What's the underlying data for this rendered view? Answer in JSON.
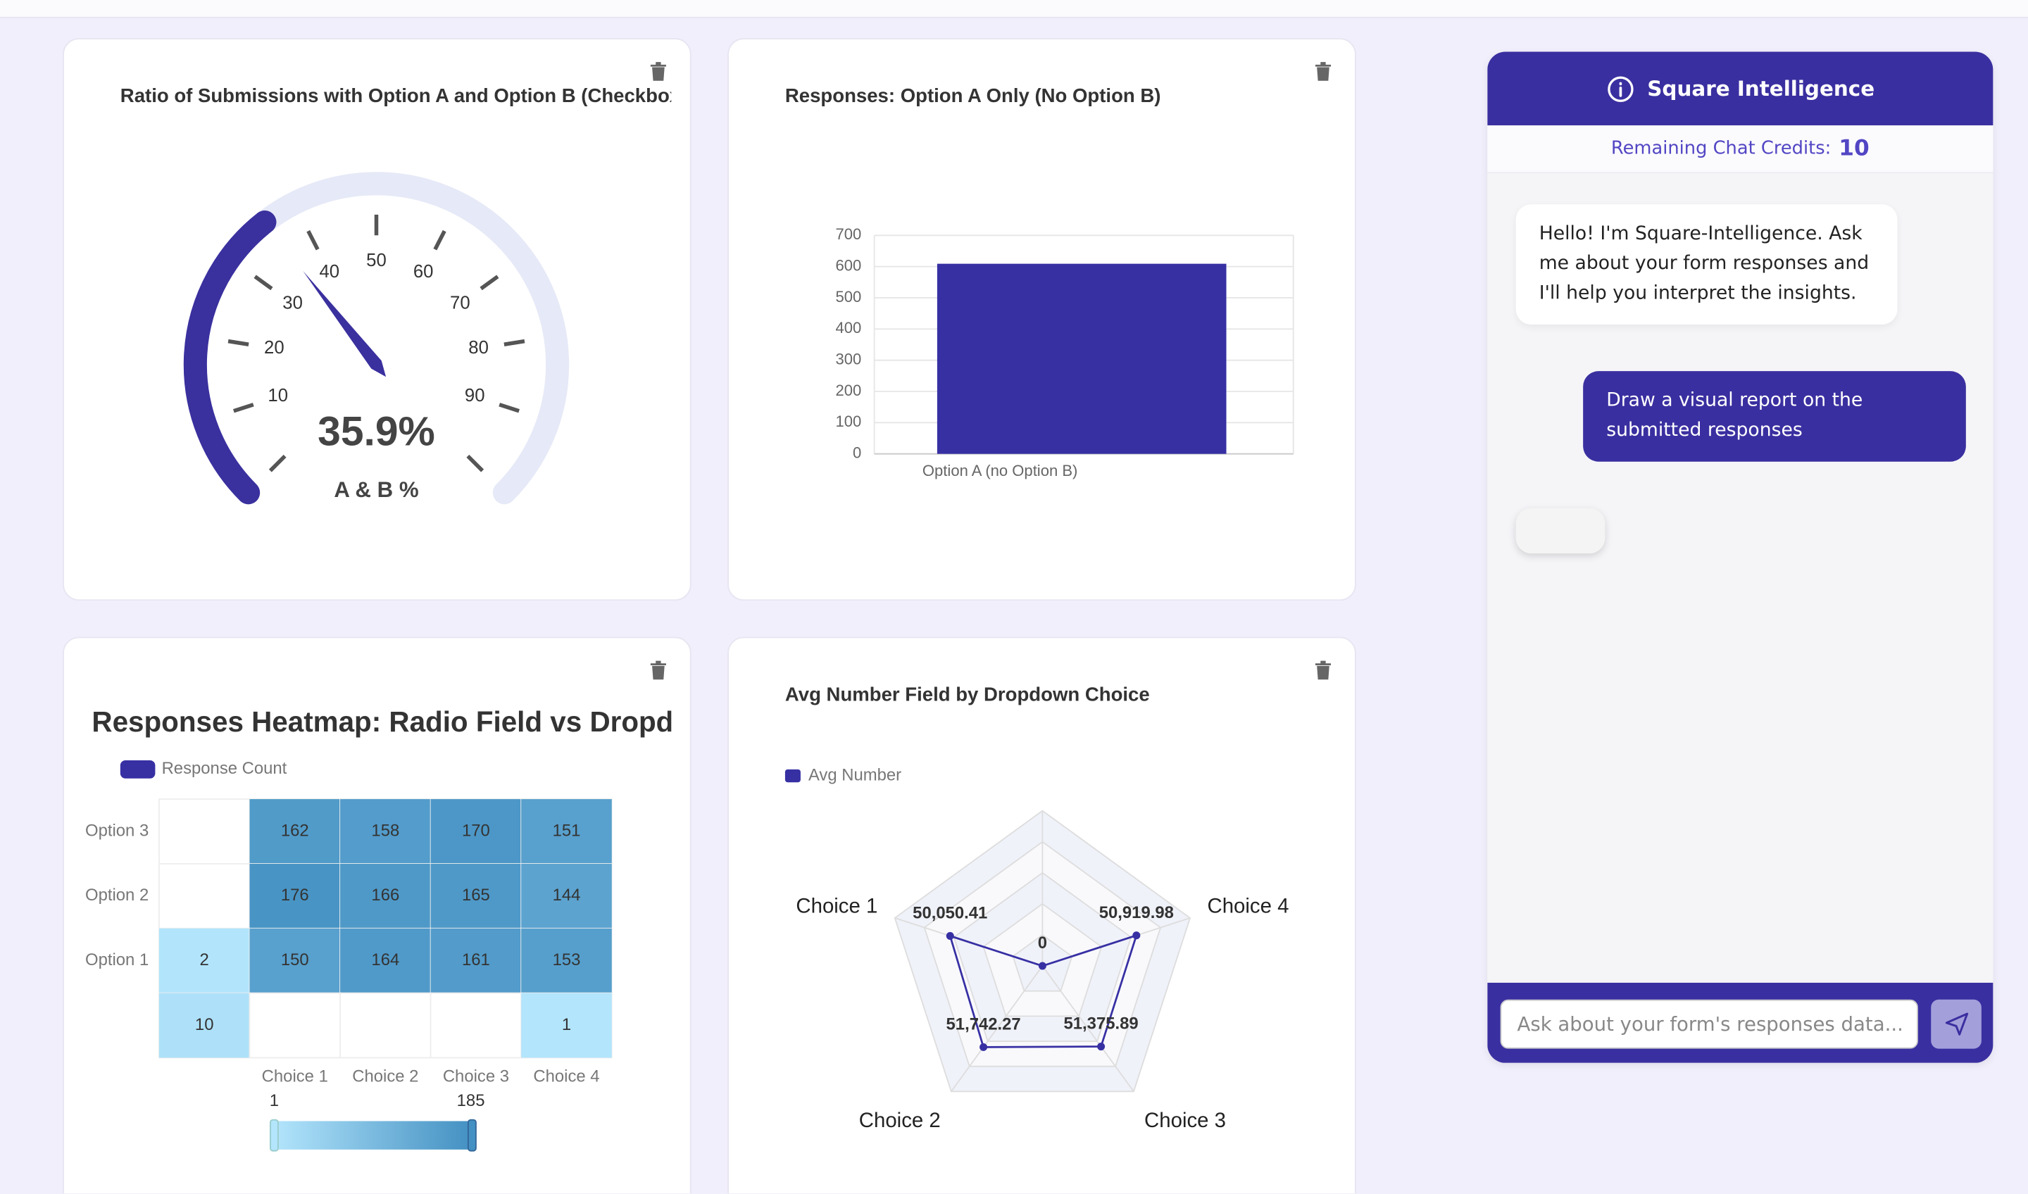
{
  "gauge_card": {
    "title": "Ratio of Submissions with Option A and Option B (Checkbox)",
    "chart": {
      "type": "gauge",
      "value": 35.9,
      "value_label": "35.9%",
      "detail": "A & B %",
      "range": [
        0,
        100
      ],
      "ticks": [
        10,
        20,
        30,
        40,
        50,
        60,
        70,
        80,
        90
      ],
      "color": "#3a309e",
      "track_color": "#e6e9f7"
    }
  },
  "bar_card": {
    "title": "Responses: Option A Only (No Option B)",
    "chart": {
      "type": "bar",
      "categories": [
        "Option A (no Option B)"
      ],
      "values": [
        609
      ],
      "color": "#3730a3",
      "ylim": [
        0,
        700
      ],
      "yticks": [
        0,
        100,
        200,
        300,
        400,
        500,
        600,
        700
      ],
      "grid": true
    }
  },
  "heatmap_card": {
    "title": "Responses Heatmap: Radio Field vs Dropdown",
    "chart": {
      "type": "heatmap",
      "legend": "Response Count",
      "legend_color": "#3730a3",
      "x_categories": [
        null,
        "Choice 1",
        "Choice 2",
        "Choice 3",
        "Choice 4"
      ],
      "y_categories": [
        "Option 3",
        "Option 2",
        "Option 1",
        null
      ],
      "values": [
        [
          null,
          162,
          158,
          170,
          151
        ],
        [
          null,
          176,
          166,
          165,
          144
        ],
        [
          2,
          150,
          164,
          161,
          153
        ],
        [
          10,
          null,
          null,
          null,
          1
        ]
      ],
      "visual_map": {
        "min": 1,
        "max": 185,
        "colors": [
          "#b3e5fc",
          "#4390c2"
        ]
      }
    }
  },
  "radar_card": {
    "title": "Avg Number Field by Dropdown Choice",
    "chart": {
      "type": "radar",
      "legend": "Avg Number",
      "color": "#3730a3",
      "indicators": [
        null,
        "Choice 1",
        "Choice 2",
        "Choice 3",
        "Choice 4"
      ],
      "values": [
        0,
        50050.41,
        51742.27,
        51375.89,
        50919.98
      ],
      "value_labels": [
        "0",
        "50,050.41",
        "51,742.27",
        "51,375.89",
        "50,919.98"
      ],
      "rlim": [
        0,
        80000
      ]
    }
  },
  "chat": {
    "title": "Square Intelligence",
    "credits_label": "Remaining Chat Credits:",
    "credits": 10,
    "messages": [
      {
        "role": "bot",
        "text": "Hello! I'm Square-Intelligence. Ask me about your form responses and I'll help you interpret the insights."
      },
      {
        "role": "user",
        "text": "Draw a visual report on the submitted responses"
      }
    ],
    "input_placeholder": "Ask about your form's responses data..."
  }
}
